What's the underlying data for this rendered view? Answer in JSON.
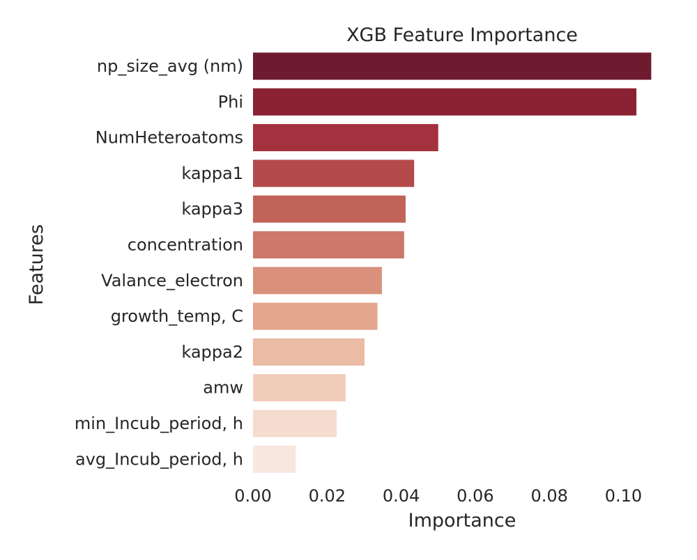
{
  "chart_data": {
    "type": "bar",
    "orientation": "horizontal",
    "title": "XGB Feature Importance",
    "xlabel": "Importance",
    "ylabel": "Features",
    "categories": [
      "np_size_avg (nm)",
      "Phi",
      "NumHeteroatoms",
      "kappa1",
      "kappa3",
      "concentration",
      "Valance_electron",
      "growth_temp, C",
      "kappa2",
      "amw",
      "min_Incub_period, h",
      "avg_Incub_period, h"
    ],
    "values": [
      0.1075,
      0.1035,
      0.05,
      0.0435,
      0.0412,
      0.0408,
      0.0348,
      0.0336,
      0.0301,
      0.025,
      0.0226,
      0.0115
    ],
    "colors": [
      "#6e1a2f",
      "#8a2233",
      "#a3313e",
      "#b44a4b",
      "#c2635a",
      "#cc786a",
      "#d9917c",
      "#e4a68e",
      "#ebbba4",
      "#f2ccba",
      "#f6dbcf",
      "#f8e7df"
    ],
    "xlim": [
      0.0,
      0.108
    ],
    "xticks": [
      "0.00",
      "0.02",
      "0.04",
      "0.06",
      "0.08",
      "0.10"
    ],
    "xtick_values": [
      0.0,
      0.02,
      0.04,
      0.06,
      0.08,
      0.1
    ],
    "grid": false,
    "legend": "none"
  }
}
